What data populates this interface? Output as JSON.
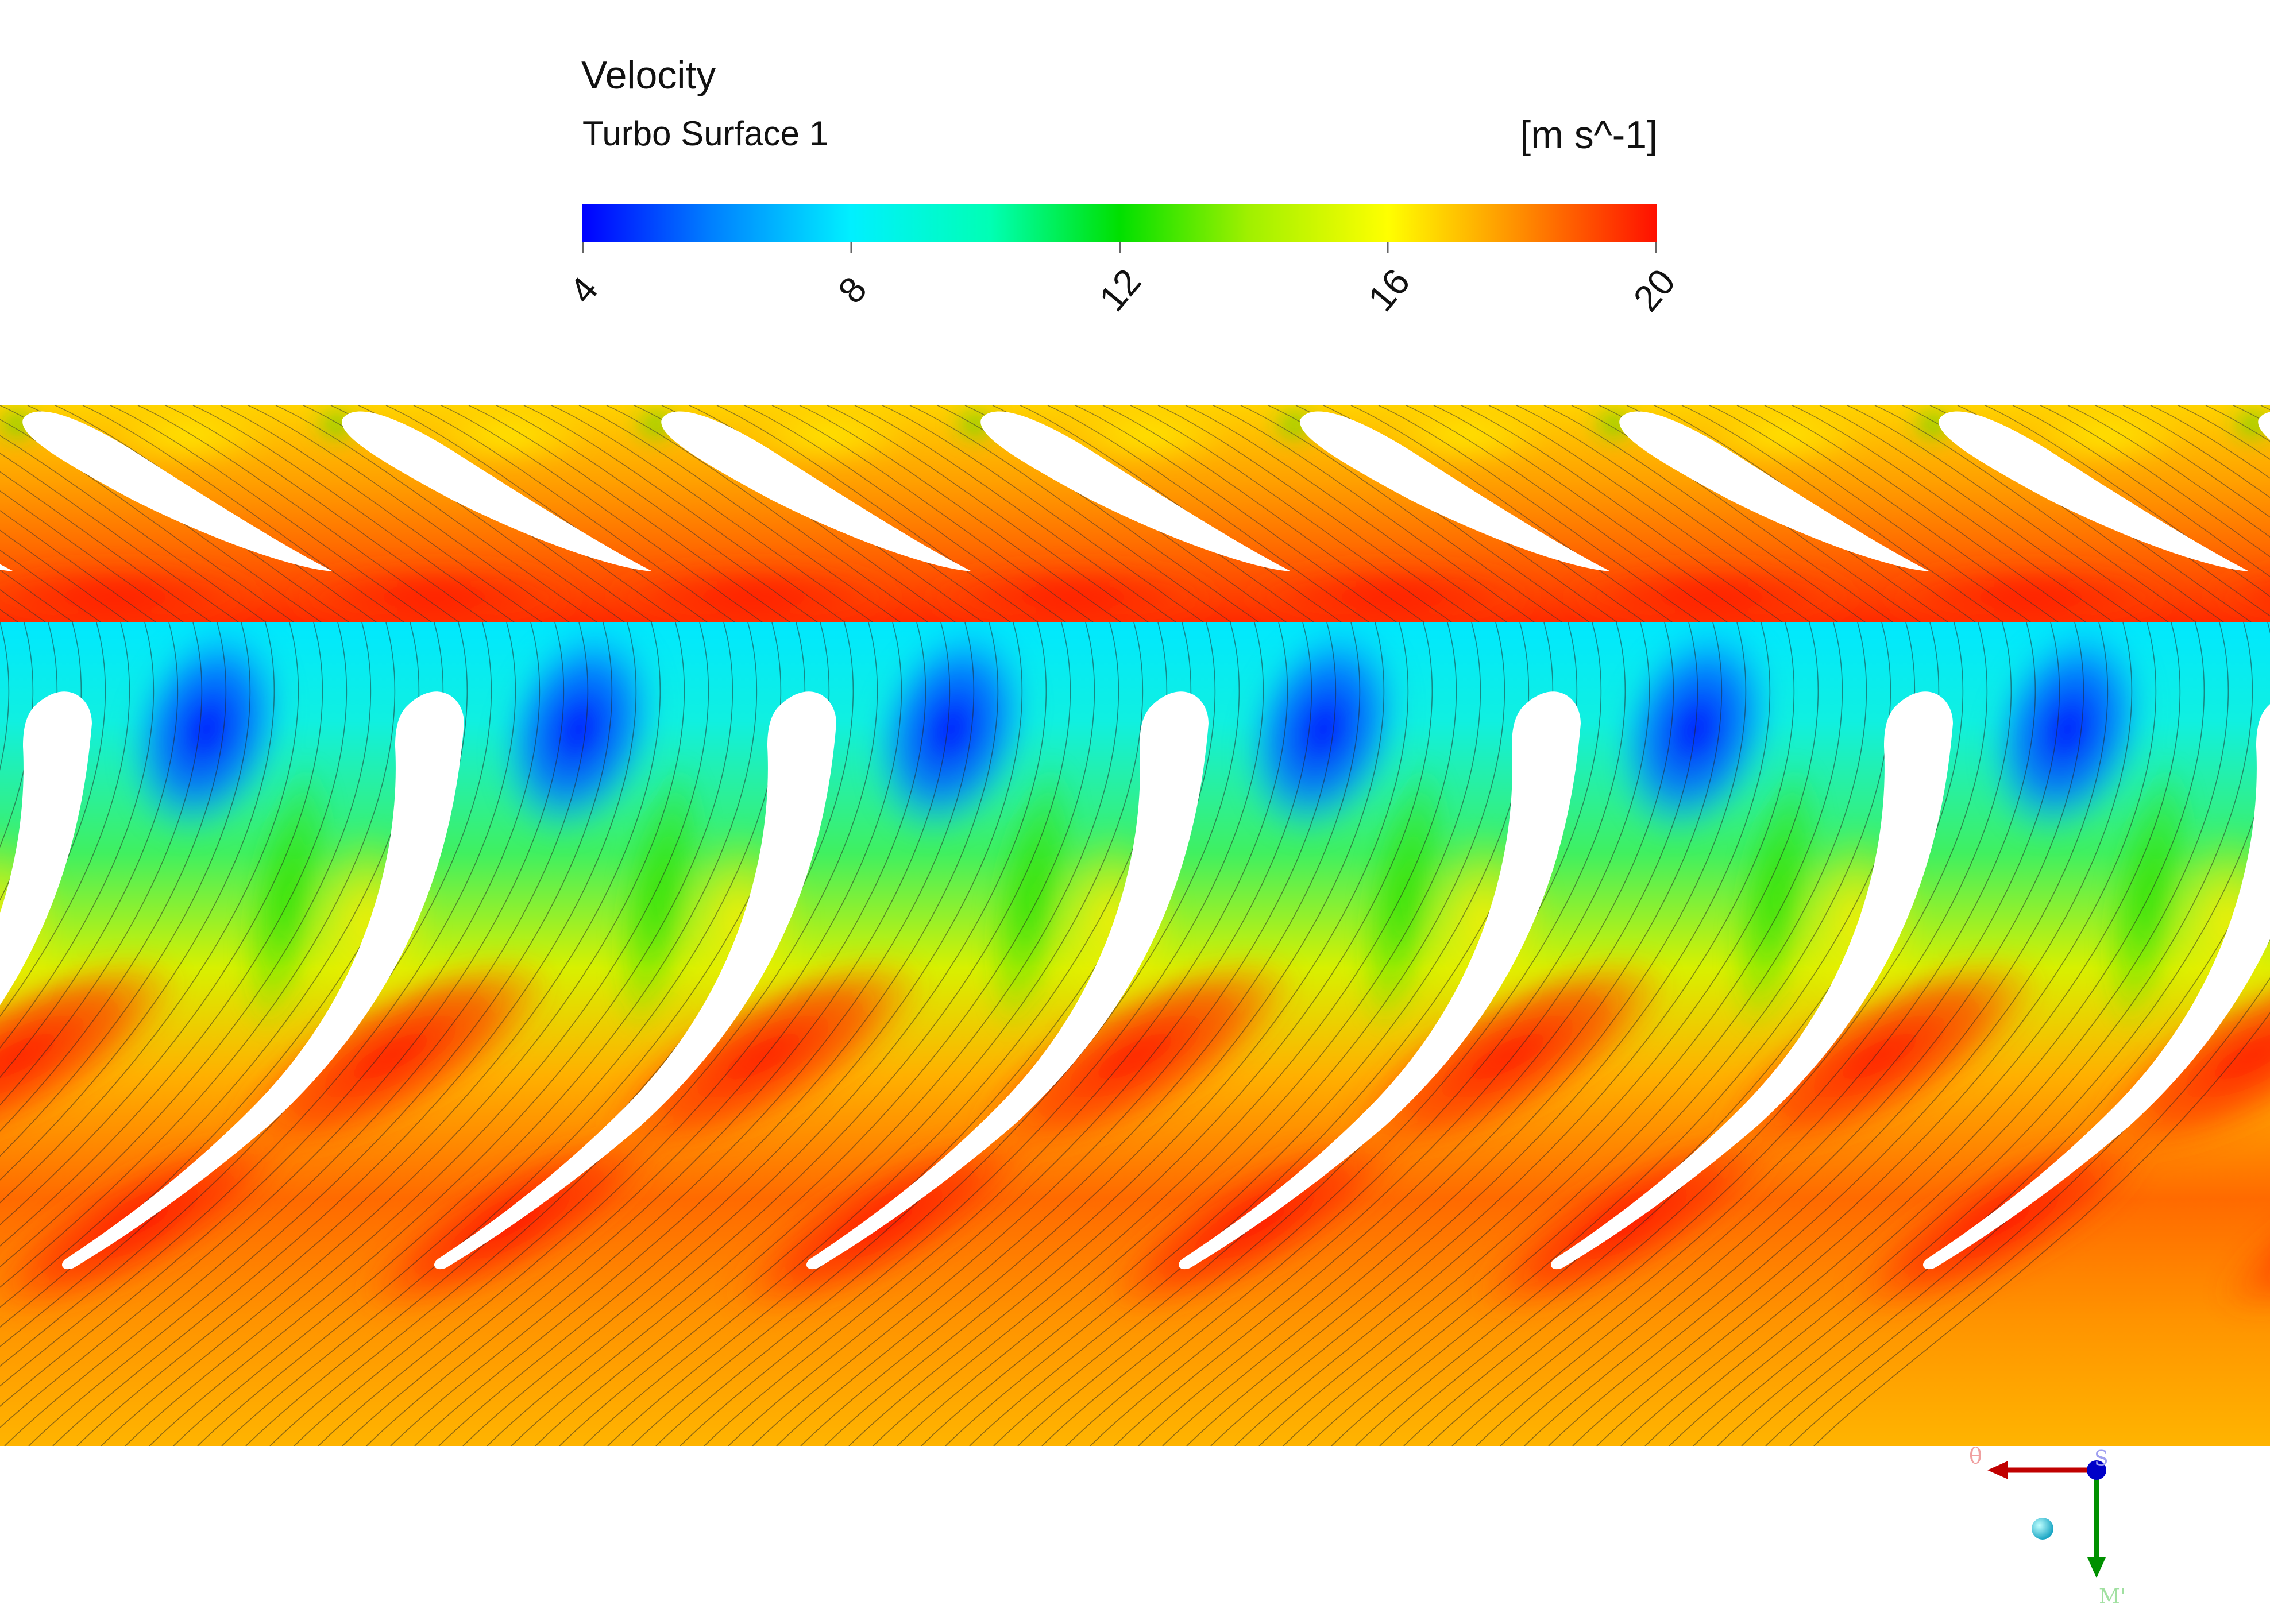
{
  "legend": {
    "title": "Velocity",
    "subtitle": "Turbo Surface 1",
    "unit": "[m s^-1]",
    "ticks": [
      "4",
      "8",
      "12",
      "16",
      "20"
    ],
    "range": [
      4,
      20
    ],
    "colormap": [
      "#0000ff",
      "#0080ff",
      "#00f0ff",
      "#00ffb4",
      "#00e000",
      "#a0f000",
      "#ffff00",
      "#ffb000",
      "#ff7000",
      "#ff2000"
    ]
  },
  "axes": {
    "theta_label": "θ",
    "s_label": "S",
    "m_label": "M'",
    "colors": {
      "theta": "#c00000",
      "s": "#0000c8",
      "m": "#009000",
      "dot": "#30d0e0"
    }
  }
}
